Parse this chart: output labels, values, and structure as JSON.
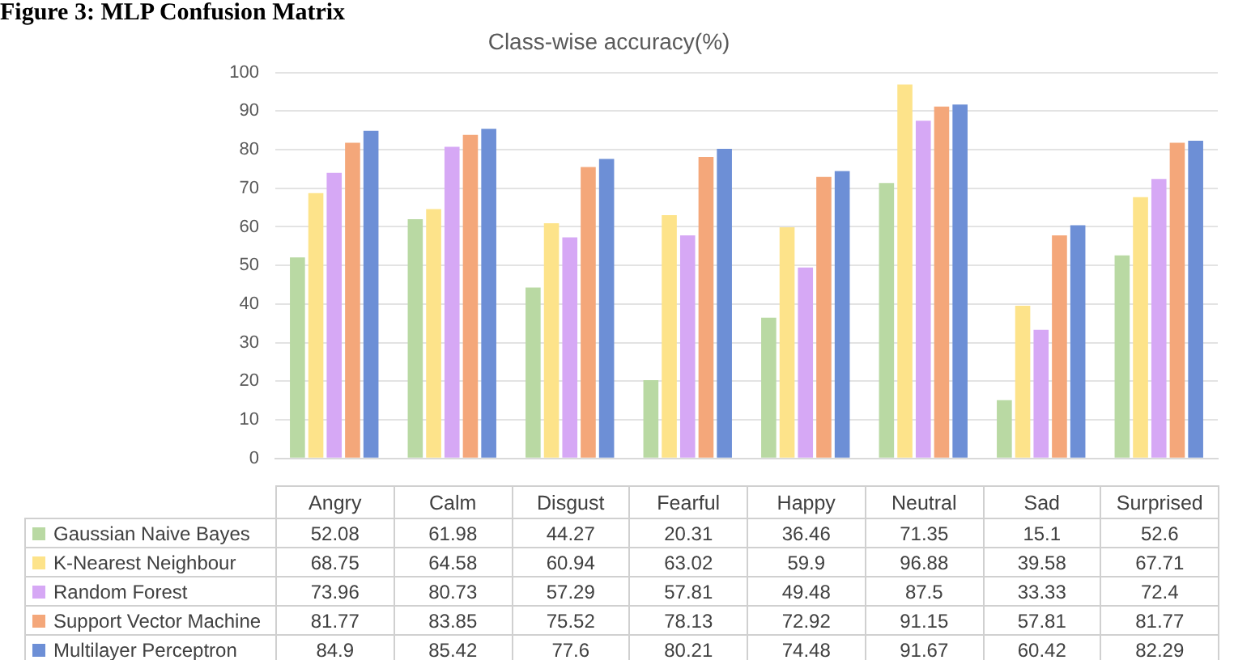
{
  "chart_data": {
    "type": "bar",
    "title": "Class-wise accuracy(%)",
    "annotations": [
      "Figure 3: MLP Confusion Matrix"
    ],
    "categories": [
      "Angry",
      "Calm",
      "Disgust",
      "Fearful",
      "Happy",
      "Neutral",
      "Sad",
      "Surprised"
    ],
    "series": [
      {
        "name": "Gaussian Naive Bayes",
        "color": "#b9d9a3",
        "values": [
          52.08,
          61.98,
          44.27,
          20.31,
          36.46,
          71.35,
          15.1,
          52.6
        ]
      },
      {
        "name": "K-Nearest Neighbour",
        "color": "#fde38a",
        "values": [
          68.75,
          64.58,
          60.94,
          63.02,
          59.9,
          96.88,
          39.58,
          67.71
        ]
      },
      {
        "name": "Random Forest",
        "color": "#d6a8f5",
        "values": [
          73.96,
          80.73,
          57.29,
          57.81,
          49.48,
          87.5,
          33.33,
          72.4
        ]
      },
      {
        "name": "Support Vector Machine",
        "color": "#f4a77a",
        "values": [
          81.77,
          83.85,
          75.52,
          78.13,
          72.92,
          91.15,
          57.81,
          81.77
        ]
      },
      {
        "name": "Multilayer Perceptron",
        "color": "#6d8fd6",
        "values": [
          84.9,
          85.42,
          77.6,
          80.21,
          74.48,
          91.67,
          60.42,
          82.29
        ]
      }
    ],
    "ylim": [
      0,
      100
    ],
    "yticks": [
      0,
      10,
      20,
      30,
      40,
      50,
      60,
      70,
      80,
      90,
      100
    ],
    "grid": "y",
    "legend": "bottom",
    "data_labels": true
  }
}
